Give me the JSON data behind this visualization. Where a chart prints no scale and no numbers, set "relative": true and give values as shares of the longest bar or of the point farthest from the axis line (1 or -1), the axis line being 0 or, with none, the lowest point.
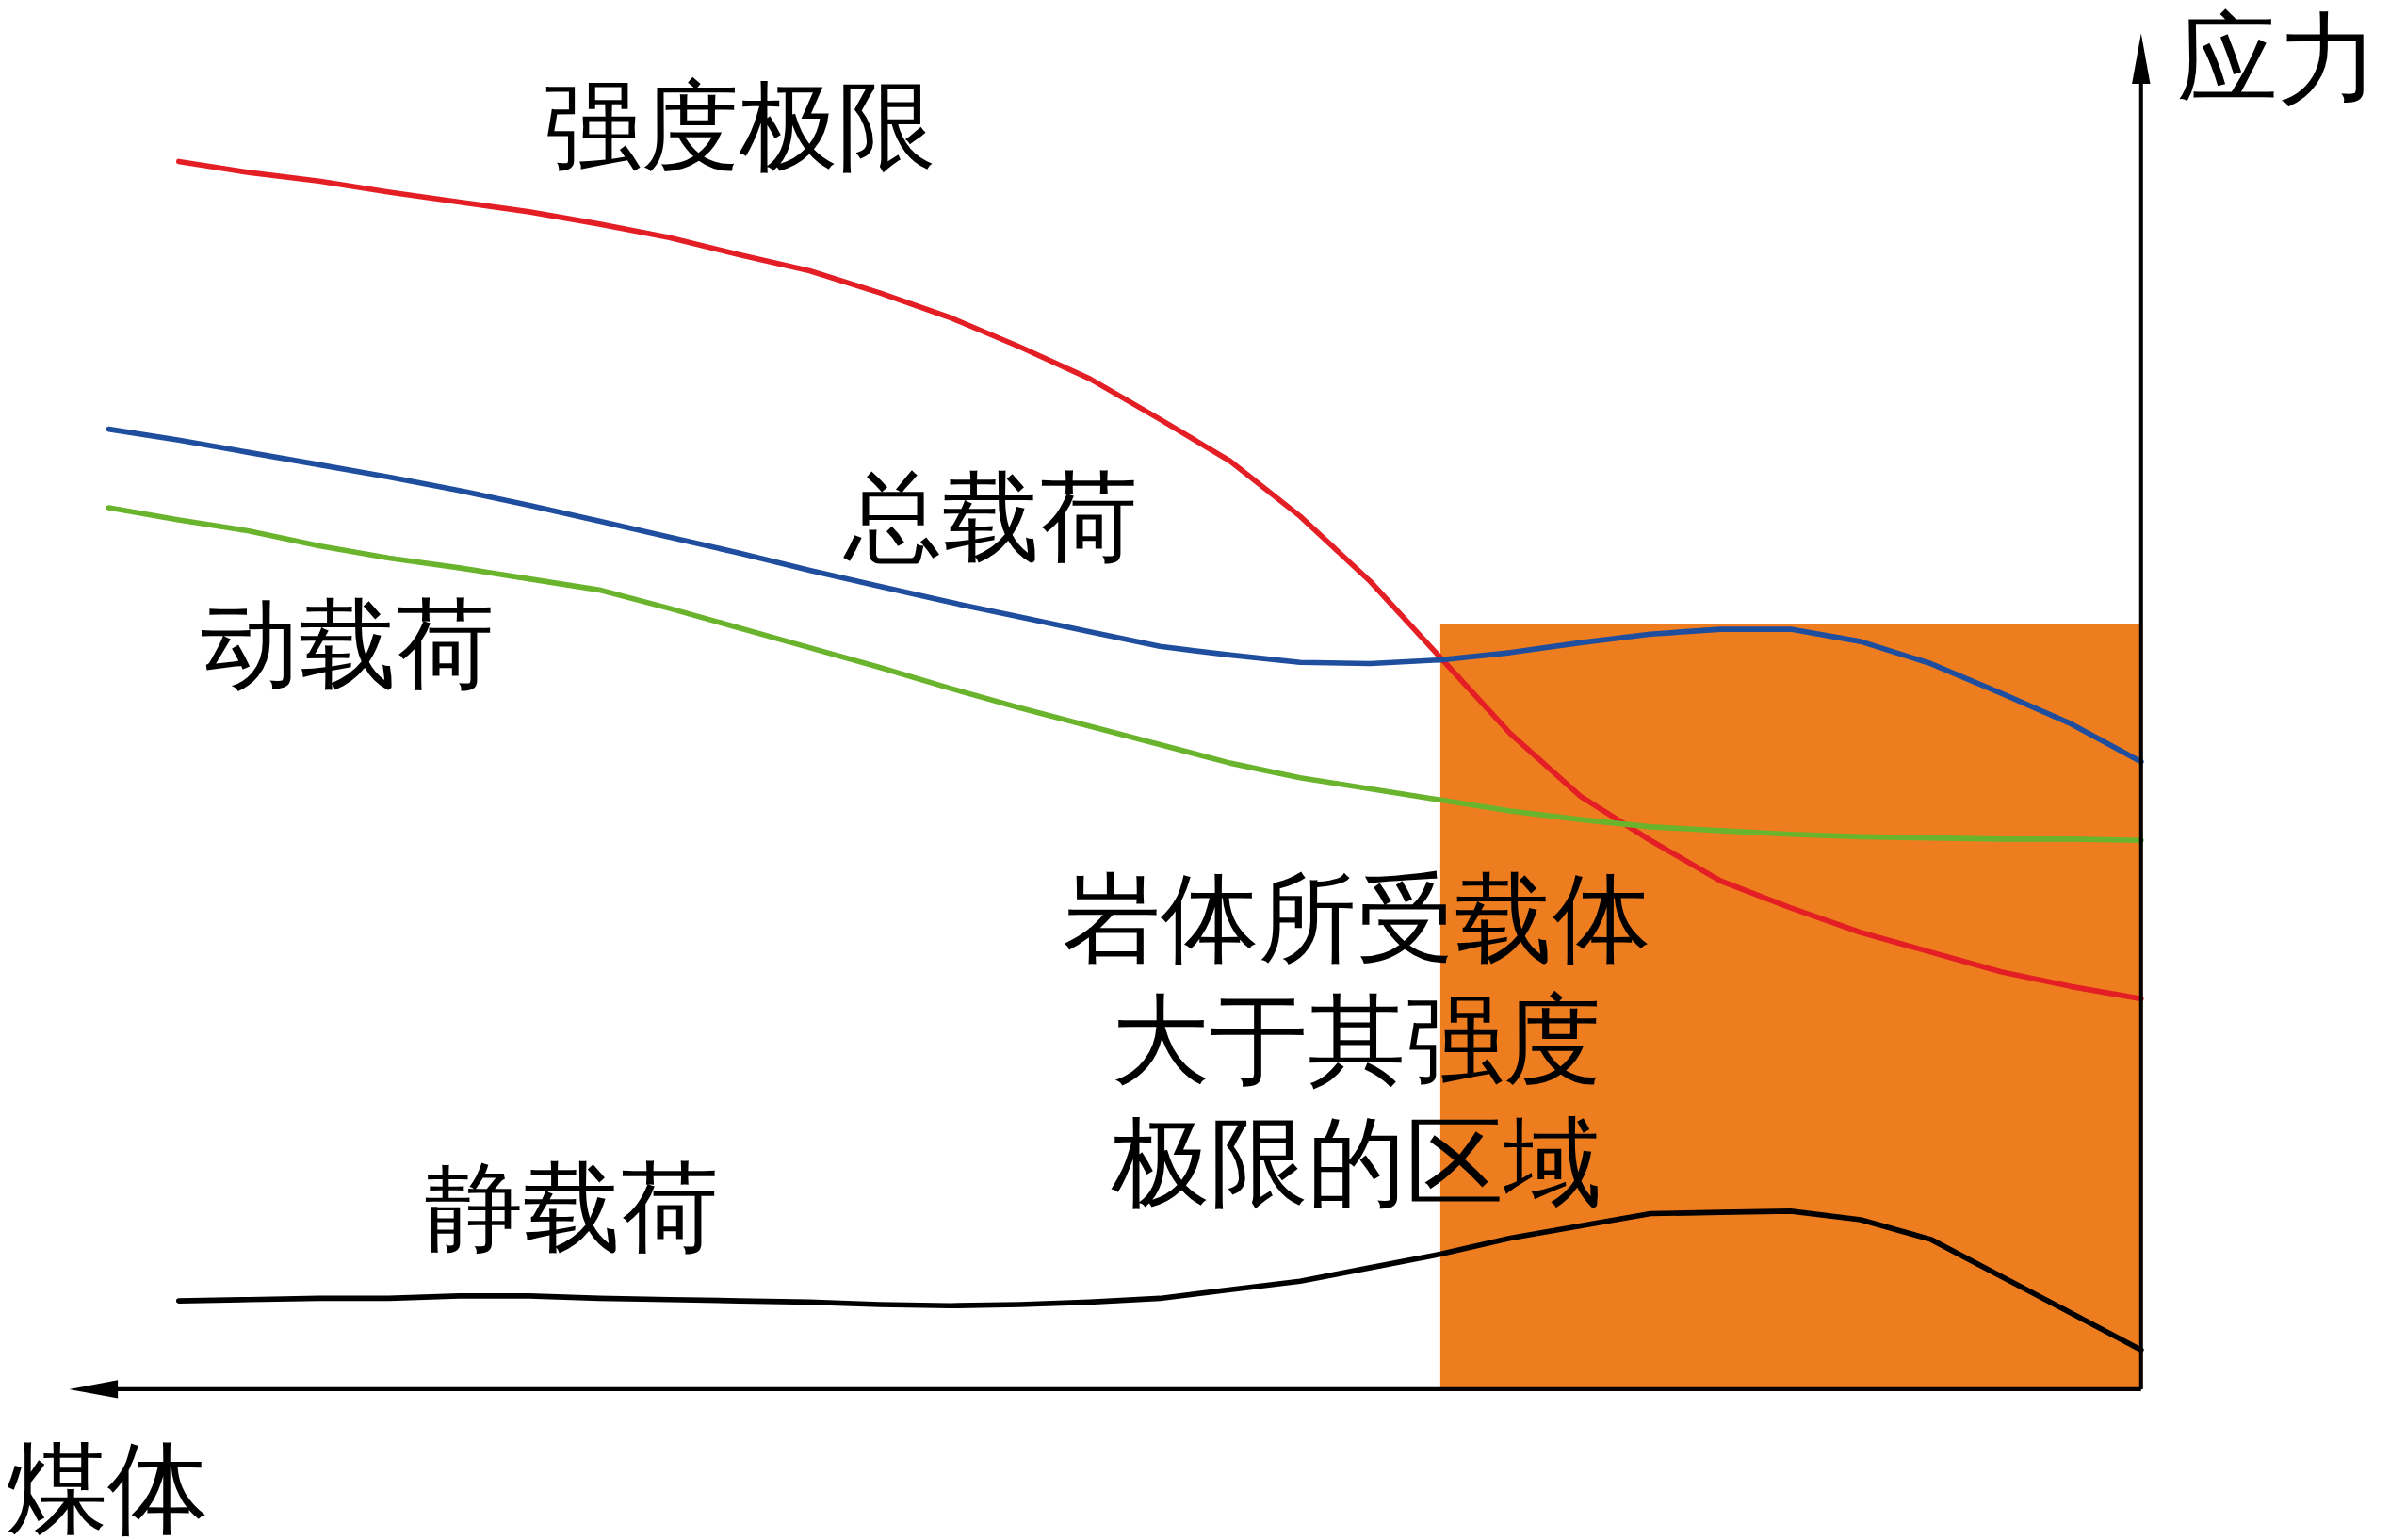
{
  "chart_data": {
    "type": "line",
    "relative": true,
    "xlabel": "煤体",
    "ylabel": "应力",
    "annotations": [
      "岩体所受载体大于其强度极限的区域"
    ],
    "categories": [
      null,
      null,
      null,
      null,
      null,
      null,
      null,
      null,
      null,
      null,
      null,
      null,
      null,
      null,
      null,
      null,
      null,
      null,
      null,
      null,
      null,
      null,
      null,
      null,
      null,
      null,
      null,
      null,
      null,
      null
    ],
    "series": [
      {
        "type": "area",
        "color": "#ed7d1f",
        "values": [
          null,
          null,
          null,
          null,
          null,
          null,
          null,
          null,
          null,
          null,
          null,
          null,
          null,
          null,
          null,
          null,
          null,
          null,
          null,
          0.623,
          0.623,
          0.623,
          0.623,
          0.623,
          0.623,
          0.623,
          0.623,
          0.623,
          0.623,
          0.623
        ]
      },
      {
        "name": "强度极限",
        "color": "#e31e24",
        "values": [
          null,
          1,
          0.991,
          0.984,
          0.975,
          0.967,
          0.959,
          0.949,
          0.938,
          0.924,
          0.911,
          0.893,
          0.873,
          0.849,
          0.823,
          0.79,
          0.756,
          0.711,
          0.658,
          0.596,
          0.534,
          0.483,
          0.447,
          0.414,
          0.392,
          0.372,
          0.356,
          0.34,
          0.328,
          0.318
        ]
      },
      {
        "name": "总载荷",
        "color": "#1f4e9e",
        "values": [
          0.782,
          0.773,
          0.763,
          0.753,
          0.743,
          0.732,
          0.72,
          0.707,
          0.694,
          0.681,
          0.667,
          0.654,
          0.641,
          0.629,
          0.617,
          0.605,
          0.598,
          0.592,
          0.591,
          0.594,
          0.6,
          0.608,
          0.615,
          0.619,
          0.619,
          0.609,
          0.591,
          0.567,
          0.542,
          0.511
        ]
      },
      {
        "name": "动载荷",
        "color": "#6ab42d",
        "values": [
          0.718,
          0.708,
          0.699,
          0.687,
          0.677,
          0.669,
          0.66,
          0.651,
          0.636,
          0.62,
          0.604,
          0.588,
          0.571,
          0.555,
          0.54,
          0.525,
          0.51,
          0.498,
          0.489,
          0.48,
          0.471,
          0.464,
          0.458,
          0.455,
          0.452,
          0.45,
          0.449,
          0.448,
          0.448,
          0.447
        ]
      },
      {
        "name": "静载荷",
        "color": "#000000",
        "values": [
          null,
          0.072,
          0.073,
          0.074,
          0.074,
          0.076,
          0.076,
          0.074,
          0.073,
          0.072,
          0.071,
          0.069,
          0.068,
          0.069,
          0.071,
          0.074,
          0.081,
          0.088,
          0.099,
          0.11,
          0.123,
          0.133,
          0.143,
          0.144,
          0.145,
          0.138,
          0.122,
          0.092,
          0.062,
          0.032
        ]
      }
    ]
  }
}
